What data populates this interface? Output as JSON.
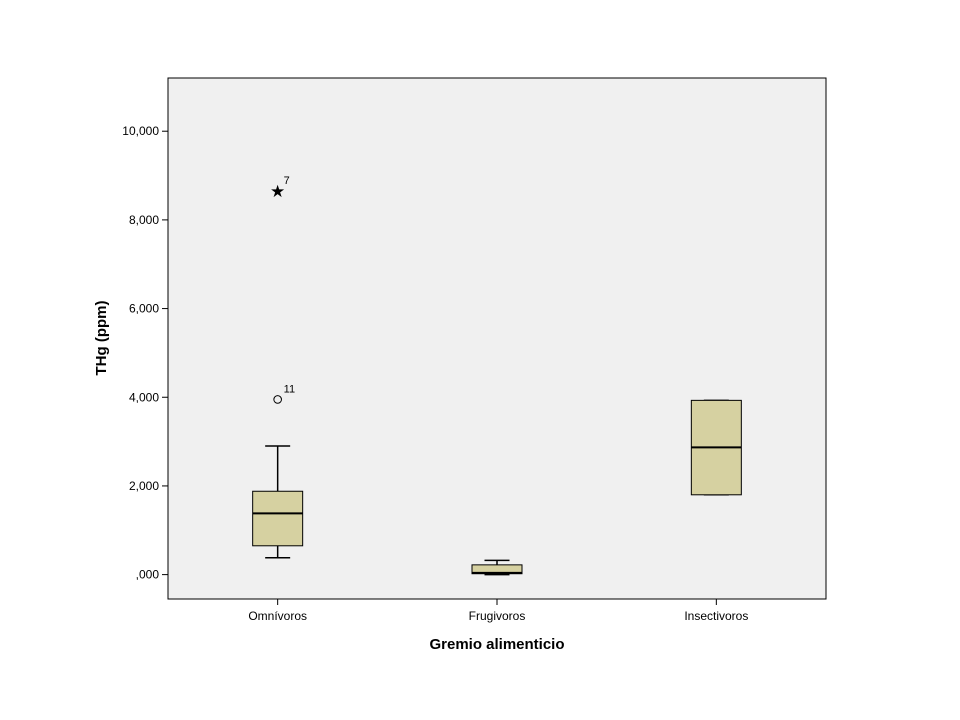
{
  "chart_data": {
    "type": "boxplot",
    "xlabel": "Gremio alimenticio",
    "ylabel": "THg (ppm)",
    "ylim": [
      -0.55,
      11.2
    ],
    "y_ticks": [
      {
        "value": 0,
        "label": ",000"
      },
      {
        "value": 2,
        "label": "2,000"
      },
      {
        "value": 4,
        "label": "4,000"
      },
      {
        "value": 6,
        "label": "6,000"
      },
      {
        "value": 8,
        "label": "8,000"
      },
      {
        "value": 10,
        "label": "10,000"
      }
    ],
    "categories": [
      "Omnívoros",
      "Frugivoros",
      "Insectivoros"
    ],
    "boxes": [
      {
        "category": "Omnívoros",
        "whisker_low": 0.38,
        "q1": 0.65,
        "median": 1.38,
        "q3": 1.88,
        "whisker_high": 2.9,
        "outliers": [
          {
            "value": 3.95,
            "label": "11",
            "marker": "circle"
          },
          {
            "value": 8.65,
            "label": "7",
            "marker": "star"
          }
        ]
      },
      {
        "category": "Frugivoros",
        "whisker_low": 0.0,
        "q1": 0.02,
        "median": 0.04,
        "q3": 0.22,
        "whisker_high": 0.32,
        "outliers": []
      },
      {
        "category": "Insectivoros",
        "whisker_low": 1.8,
        "q1": 1.8,
        "median": 2.87,
        "q3": 3.93,
        "whisker_high": 3.93,
        "outliers": []
      }
    ],
    "colors": {
      "box_fill": "#d6d1a1",
      "plot_bg": "#f0f0f0",
      "line": "#000000"
    },
    "grid": false
  }
}
